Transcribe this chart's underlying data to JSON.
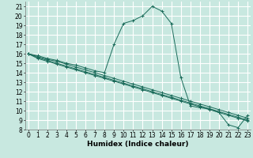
{
  "xlabel": "Humidex (Indice chaleur)",
  "bg_color": "#c8e8e0",
  "grid_color": "#ffffff",
  "line_color": "#1a6b5a",
  "marker": "+",
  "lines": [
    {
      "x": [
        0,
        1,
        2,
        3,
        4,
        5,
        6,
        7,
        8,
        9,
        10,
        11,
        12,
        13,
        14,
        15,
        16,
        17,
        18,
        19,
        20,
        21,
        22,
        23
      ],
      "y": [
        16,
        15.8,
        15.5,
        15.3,
        15.0,
        14.8,
        14.5,
        14.2,
        14.0,
        17.0,
        19.2,
        19.5,
        20.0,
        21.0,
        20.5,
        19.2,
        13.5,
        10.5,
        10.3,
        10.2,
        9.8,
        8.5,
        8.2,
        9.5
      ]
    },
    {
      "x": [
        0,
        1,
        2,
        3,
        4,
        5,
        6,
        7,
        8,
        9,
        10,
        11,
        12,
        13,
        14,
        15,
        16,
        17,
        18,
        19,
        20,
        21,
        22,
        23
      ],
      "y": [
        16,
        15.7,
        15.4,
        15.2,
        14.9,
        14.6,
        14.3,
        14.0,
        13.7,
        13.4,
        13.1,
        12.8,
        12.5,
        12.2,
        11.9,
        11.6,
        11.3,
        11.0,
        10.7,
        10.4,
        10.1,
        9.8,
        9.5,
        9.2
      ]
    },
    {
      "x": [
        0,
        1,
        2,
        3,
        4,
        5,
        6,
        7,
        8,
        9,
        10,
        11,
        12,
        13,
        14,
        15,
        16,
        17,
        18,
        19,
        20,
        21,
        22,
        23
      ],
      "y": [
        16,
        15.6,
        15.3,
        15.0,
        14.7,
        14.4,
        14.1,
        13.8,
        13.5,
        13.2,
        12.9,
        12.6,
        12.3,
        12.0,
        11.7,
        11.4,
        11.1,
        10.8,
        10.5,
        10.2,
        9.9,
        9.6,
        9.3,
        9.0
      ]
    },
    {
      "x": [
        0,
        1,
        2,
        3,
        4,
        5,
        6,
        7,
        8,
        9,
        10,
        11,
        12,
        13,
        14,
        15,
        16,
        17,
        18,
        19,
        20,
        21,
        22,
        23
      ],
      "y": [
        16,
        15.5,
        15.2,
        14.9,
        14.6,
        14.3,
        14.0,
        13.7,
        13.4,
        13.1,
        12.8,
        12.5,
        12.2,
        11.9,
        11.6,
        11.3,
        11.0,
        10.7,
        10.4,
        10.1,
        9.8,
        9.5,
        9.2,
        8.9
      ]
    }
  ],
  "xlim": [
    -0.3,
    23.3
  ],
  "ylim": [
    8,
    21.5
  ],
  "yticks": [
    8,
    9,
    10,
    11,
    12,
    13,
    14,
    15,
    16,
    17,
    18,
    19,
    20,
    21
  ],
  "xticks": [
    0,
    1,
    2,
    3,
    4,
    5,
    6,
    7,
    8,
    9,
    10,
    11,
    12,
    13,
    14,
    15,
    16,
    17,
    18,
    19,
    20,
    21,
    22,
    23
  ],
  "tick_fontsize": 5.5,
  "label_fontsize": 6.5
}
